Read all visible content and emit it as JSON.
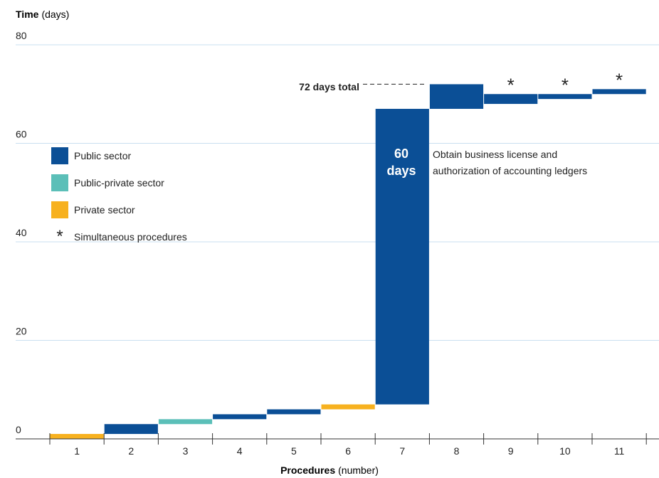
{
  "chart_data": {
    "type": "bar",
    "subtype": "cumulative-step-bar",
    "ylabel_bold": "Time",
    "ylabel_rest": "(days)",
    "xlabel_bold": "Procedures",
    "xlabel_rest": "(number)",
    "ylim": [
      0,
      80
    ],
    "yticks": [
      "80",
      "60",
      "40",
      "20",
      "0"
    ],
    "ytick_values": [
      80,
      60,
      40,
      20,
      0
    ],
    "grid": true,
    "categories": [
      "1",
      "2",
      "3",
      "4",
      "5",
      "6",
      "7",
      "8",
      "9",
      "10",
      "11"
    ],
    "procedures": [
      {
        "num": 1,
        "start": 0,
        "end": 1,
        "sector": "private",
        "simultaneous": false
      },
      {
        "num": 2,
        "start": 1,
        "end": 3,
        "sector": "public",
        "simultaneous": false
      },
      {
        "num": 3,
        "start": 3,
        "end": 4,
        "sector": "public-private",
        "simultaneous": false
      },
      {
        "num": 4,
        "start": 4,
        "end": 5,
        "sector": "public",
        "simultaneous": false
      },
      {
        "num": 5,
        "start": 5,
        "end": 6,
        "sector": "public",
        "simultaneous": false
      },
      {
        "num": 6,
        "start": 6,
        "end": 7,
        "sector": "private",
        "simultaneous": false
      },
      {
        "num": 7,
        "start": 7,
        "end": 67,
        "sector": "public",
        "simultaneous": false
      },
      {
        "num": 8,
        "start": 67,
        "end": 72,
        "sector": "public",
        "simultaneous": false
      },
      {
        "num": 9,
        "start": 68,
        "end": 70,
        "sector": "public",
        "simultaneous": true
      },
      {
        "num": 10,
        "start": 69,
        "end": 70,
        "sector": "public",
        "simultaneous": true
      },
      {
        "num": 11,
        "start": 70,
        "end": 71,
        "sector": "public",
        "simultaneous": true
      }
    ],
    "bar_label": {
      "line1": "60",
      "line2": "days"
    },
    "annotation": {
      "line1": "Obtain business license and",
      "line2": "authorization of accounting ledgers"
    },
    "total_label": "72 days total",
    "total_value": 72,
    "legend": [
      {
        "label": "Public sector",
        "color": "#0b4f96"
      },
      {
        "label": "Public-private sector",
        "color": "#5bbfb8"
      },
      {
        "label": "Private sector",
        "color": "#f7b11f"
      },
      {
        "label": "Simultaneous procedures",
        "symbol": "*"
      }
    ],
    "colors": {
      "public": "#0b4f96",
      "public-private": "#5bbfb8",
      "private": "#f7b11f",
      "grid": "#c9dff0"
    }
  }
}
